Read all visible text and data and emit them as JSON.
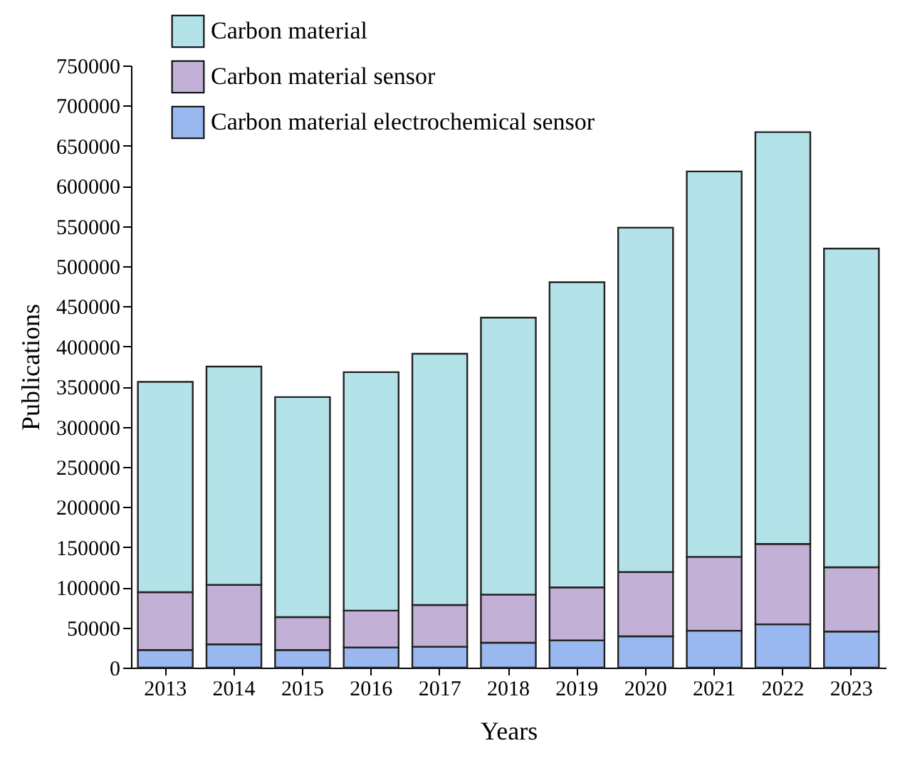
{
  "chart_data": {
    "type": "bar",
    "stacked": true,
    "xlabel": "Years",
    "ylabel": "Publications",
    "categories": [
      "2013",
      "2014",
      "2015",
      "2016",
      "2017",
      "2018",
      "2019",
      "2020",
      "2021",
      "2022",
      "2023"
    ],
    "series": [
      {
        "name": "Carbon material electrochemical sensor",
        "color": "#9ab8f0",
        "values": [
          22000,
          29000,
          22000,
          25000,
          26000,
          31000,
          34000,
          39000,
          46000,
          54000,
          45000
        ]
      },
      {
        "name": "Carbon material sensor",
        "color": "#c3b0d6",
        "values": [
          72000,
          74000,
          41000,
          46000,
          52000,
          60000,
          66000,
          80000,
          92000,
          100000,
          80000
        ]
      },
      {
        "name": "Carbon material",
        "color": "#b3e3e8",
        "values": [
          262000,
          272000,
          274000,
          297000,
          313000,
          345000,
          380000,
          429000,
          480000,
          513000,
          397000
        ]
      }
    ],
    "ylim": [
      0,
      750000
    ],
    "yticks": [
      0,
      50000,
      100000,
      150000,
      200000,
      250000,
      300000,
      350000,
      400000,
      450000,
      500000,
      550000,
      600000,
      650000,
      700000,
      750000
    ],
    "grid": false,
    "legend": "top left"
  }
}
